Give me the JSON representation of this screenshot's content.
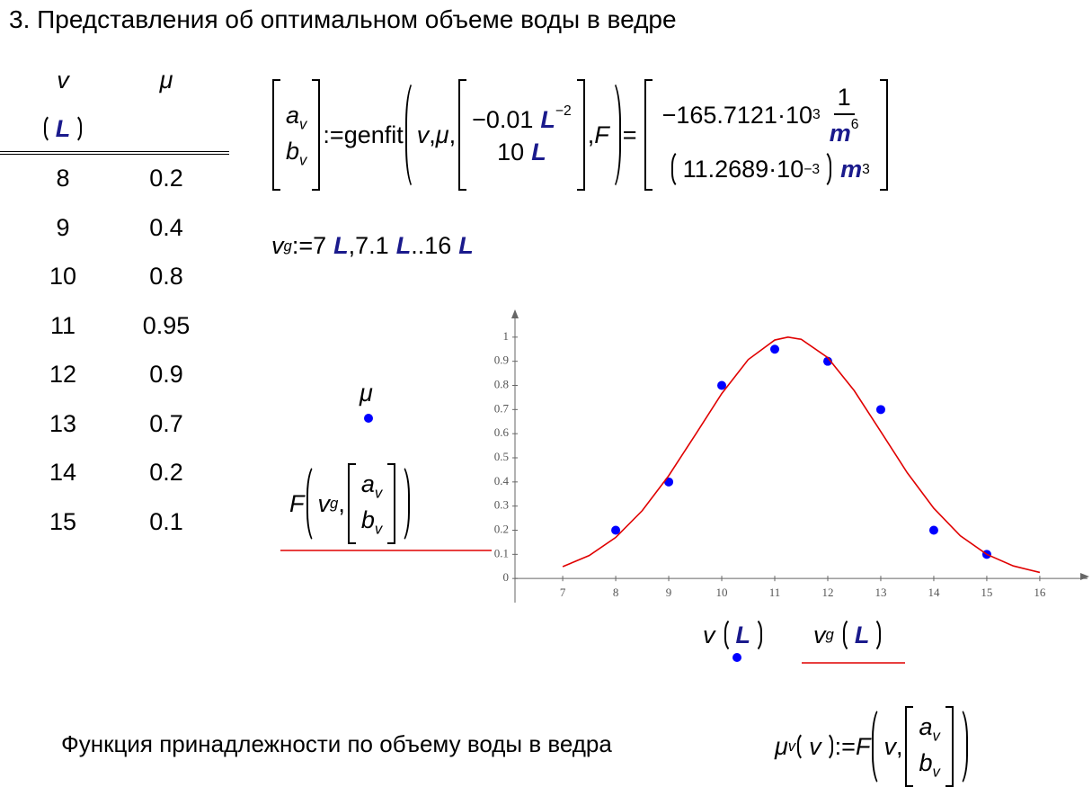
{
  "heading": "3. Представления об оптимальном объеме воды в ведре",
  "ops": {
    "assign": ":=",
    "comma": ",",
    "eq": "=",
    "dot": "·",
    "range": ".."
  },
  "table": {
    "columns": [
      "v",
      "μ"
    ],
    "unit": "L",
    "rows": [
      [
        8,
        0.2
      ],
      [
        9,
        0.4
      ],
      [
        10,
        0.8
      ],
      [
        11,
        0.95
      ],
      [
        12,
        0.9
      ],
      [
        13,
        0.7
      ],
      [
        14,
        0.2
      ],
      [
        15,
        0.1
      ]
    ]
  },
  "genfit": {
    "lhs": [
      "a",
      "b"
    ],
    "lhs_sub": "v",
    "function": "genfit",
    "args": [
      "v",
      "μ"
    ],
    "guess": [
      {
        "value": "−0.01",
        "unit": "L",
        "exp": "−2"
      },
      {
        "value": "10",
        "unit": "L"
      }
    ],
    "fn": "F",
    "result": [
      {
        "mantissa": "−165.7121",
        "base": "10",
        "exp": "3",
        "num": "1",
        "unit": "m",
        "unit_exp": "6"
      },
      {
        "mantissa": "11.2689",
        "base": "10",
        "exp": "−3",
        "unit": "m",
        "unit_exp": "3"
      }
    ]
  },
  "range": {
    "var": "v",
    "sub": "g",
    "start": "7",
    "next": "7.1",
    "end": "16",
    "unit": "L"
  },
  "membership": {
    "text": "Функция принадлежности по объему воды в ведра",
    "var": "μ",
    "sub": "v",
    "arg": "v",
    "fn": "F"
  },
  "chart_data": {
    "type": "scatter",
    "x_labels": [
      {
        "var": "v",
        "unit": "L"
      },
      {
        "var": "v",
        "sub": "g",
        "unit": "L"
      }
    ],
    "legend": {
      "fn": "F",
      "arg": "v",
      "arg_sub": "g",
      "params": [
        "a",
        "b"
      ],
      "param_sub": "v"
    },
    "xlim": [
      6.1,
      16.9
    ],
    "xticks": [
      7,
      8,
      9,
      10,
      11,
      12,
      13,
      14,
      15,
      16
    ],
    "ylim": [
      -0.1,
      1.1
    ],
    "yticks": [
      0,
      0.1,
      0.2,
      0.3,
      0.4,
      0.5,
      0.6,
      0.7,
      0.8,
      0.9,
      1
    ],
    "grid": false,
    "series": [
      {
        "name": "μ",
        "type": "scatter",
        "color": "#0000ff",
        "x": [
          8,
          9,
          10,
          11,
          12,
          13,
          14,
          15
        ],
        "values": [
          0.2,
          0.4,
          0.8,
          0.95,
          0.9,
          0.7,
          0.2,
          0.1
        ]
      },
      {
        "name": "F",
        "type": "line",
        "color": "#e00000",
        "x": [
          7,
          7.5,
          8,
          8.5,
          9,
          9.5,
          10,
          10.5,
          11,
          11.25,
          11.5,
          12,
          12.5,
          13,
          13.5,
          14,
          14.5,
          15,
          15.5,
          16
        ],
        "values": [
          0.049,
          0.095,
          0.17,
          0.281,
          0.426,
          0.595,
          0.766,
          0.907,
          0.988,
          1.0,
          0.991,
          0.915,
          0.778,
          0.609,
          0.438,
          0.291,
          0.177,
          0.1,
          0.052,
          0.025
        ]
      }
    ]
  }
}
